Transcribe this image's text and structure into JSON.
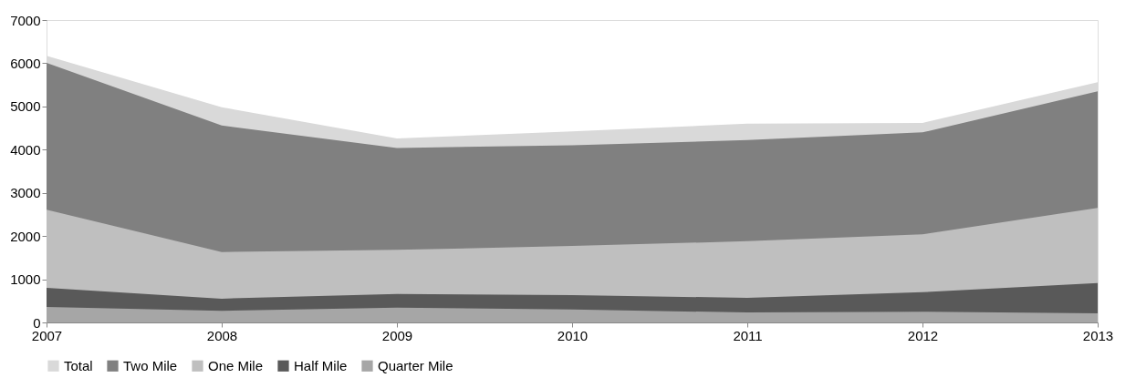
{
  "chart_data": {
    "type": "area",
    "x": [
      2007,
      2008,
      2009,
      2010,
      2011,
      2012,
      2013
    ],
    "series": [
      {
        "name": "Total",
        "color": "#d9d9d9",
        "values": [
          6170,
          4980,
          4260,
          4420,
          4600,
          4620,
          5560
        ]
      },
      {
        "name": "Two Mile",
        "color": "#808080",
        "values": [
          6010,
          4560,
          4040,
          4100,
          4220,
          4400,
          5350
        ]
      },
      {
        "name": "One Mile",
        "color": "#bfbfbf",
        "values": [
          2610,
          1630,
          1680,
          1770,
          1880,
          2040,
          2650
        ]
      },
      {
        "name": "Half Mile",
        "color": "#595959",
        "values": [
          800,
          550,
          660,
          630,
          570,
          700,
          910
        ]
      },
      {
        "name": "Quarter Mile",
        "color": "#a6a6a6",
        "values": [
          360,
          270,
          340,
          300,
          230,
          250,
          210
        ]
      }
    ],
    "xlim": [
      2007,
      2013
    ],
    "xticks": [
      2007,
      2008,
      2009,
      2010,
      2011,
      2012,
      2013
    ],
    "ylim": [
      0,
      7000
    ],
    "yticks": [
      0,
      1000,
      2000,
      3000,
      4000,
      5000,
      6000,
      7000
    ],
    "grid": false,
    "legend": "bottom"
  }
}
